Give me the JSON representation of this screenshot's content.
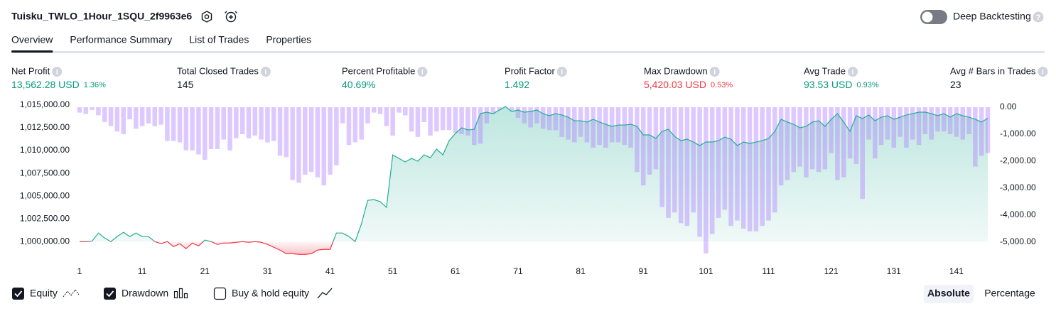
{
  "header": {
    "title": "Tuisku_TWLO_1Hour_1SQU_2f9963e6",
    "deep_backtesting": "Deep Backtesting"
  },
  "tabs": [
    "Overview",
    "Performance Summary",
    "List of Trades",
    "Properties"
  ],
  "active_tab": 0,
  "metrics": [
    {
      "label": "Net Profit",
      "value": "13,562.28 USD",
      "pct": "1.36%",
      "color": "#089981"
    },
    {
      "label": "Total Closed Trades",
      "value": "145",
      "color": "#131722"
    },
    {
      "label": "Percent Profitable",
      "value": "40.69%",
      "color": "#089981"
    },
    {
      "label": "Profit Factor",
      "value": "1.492",
      "color": "#089981"
    },
    {
      "label": "Max Drawdown",
      "value": "5,420.03 USD",
      "pct": "0.53%",
      "color": "#f23645"
    },
    {
      "label": "Avg Trade",
      "value": "93.53 USD",
      "pct": "0.93%",
      "color": "#089981"
    },
    {
      "label": "Avg # Bars in Trades",
      "value": "23",
      "color": "#131722"
    }
  ],
  "buy_hold": "Buy & hold equity",
  "scale_buttons": [
    "Absolute",
    "Percentage"
  ],
  "chart_data": {
    "type": "combo",
    "x": [
      1,
      2,
      3,
      4,
      5,
      6,
      7,
      8,
      9,
      10,
      11,
      12,
      13,
      14,
      15,
      16,
      17,
      18,
      19,
      20,
      21,
      22,
      23,
      24,
      25,
      26,
      27,
      28,
      29,
      30,
      31,
      32,
      33,
      34,
      35,
      36,
      37,
      38,
      39,
      40,
      41,
      42,
      43,
      44,
      45,
      46,
      47,
      48,
      49,
      50,
      51,
      52,
      53,
      54,
      55,
      56,
      57,
      58,
      59,
      60,
      61,
      62,
      63,
      64,
      65,
      66,
      67,
      68,
      69,
      70,
      71,
      72,
      73,
      74,
      75,
      76,
      77,
      78,
      79,
      80,
      81,
      82,
      83,
      84,
      85,
      86,
      87,
      88,
      89,
      90,
      91,
      92,
      93,
      94,
      95,
      96,
      97,
      98,
      99,
      100,
      101,
      102,
      103,
      104,
      105,
      106,
      107,
      108,
      109,
      110,
      111,
      112,
      113,
      114,
      115,
      116,
      117,
      118,
      119,
      120,
      121,
      122,
      123,
      124,
      125,
      126,
      127,
      128,
      129,
      130,
      131,
      132,
      133,
      134,
      135,
      136,
      137,
      138,
      139,
      140,
      141,
      142,
      143,
      144,
      145,
      146
    ],
    "xlim": [
      1,
      146
    ],
    "xticks": [
      1,
      11,
      21,
      31,
      41,
      51,
      61,
      71,
      81,
      91,
      101,
      111,
      121,
      131,
      141
    ],
    "ylim": [
      998300,
      1015000
    ],
    "yticks": [
      {
        "value": 1000000,
        "label": "1,000,000.00"
      },
      {
        "value": 1002500,
        "label": "1,002,500.00"
      },
      {
        "value": 1005000,
        "label": "1,005,000.00"
      },
      {
        "value": 1007500,
        "label": "1,007,500.00"
      },
      {
        "value": 1010000,
        "label": "1,010,000.00"
      },
      {
        "value": 1012500,
        "label": "1,012,500.00"
      },
      {
        "value": 1015000,
        "label": "1,015,000.00"
      }
    ],
    "y2lim": [
      -5553,
      79
    ],
    "y2ticks": [
      {
        "value": 0,
        "label": "0.00"
      },
      {
        "value": -1000,
        "label": "-1,000.00"
      },
      {
        "value": -2000,
        "label": "-2,000.00"
      },
      {
        "value": -3000,
        "label": "-3,000.00"
      },
      {
        "value": -4000,
        "label": "-4,000.00"
      },
      {
        "value": -5000,
        "label": "-5,000.00"
      }
    ],
    "series": [
      {
        "name": "Equity",
        "type": "line",
        "color": "#22ab94",
        "below_color": "#f23645",
        "values": [
          1000000,
          1000000,
          1000050,
          1000940,
          1000390,
          1000000,
          1000550,
          1001020,
          1000550,
          1000940,
          1000550,
          1000550,
          1000000,
          999770,
          1000000,
          999450,
          999770,
          999220,
          999840,
          999530,
          1000160,
          1000000,
          999690,
          999840,
          999840,
          999920,
          1000000,
          999920,
          1000000,
          999920,
          999690,
          999380,
          999060,
          998670,
          998670,
          998590,
          998590,
          998670,
          999060,
          999140,
          999140,
          1000940,
          1000940,
          1000550,
          1000000,
          1001950,
          1004530,
          1004610,
          1004380,
          1003750,
          1009530,
          1009140,
          1008750,
          1009140,
          1008830,
          1009530,
          1009220,
          1010160,
          1009530,
          1011090,
          1011880,
          1012500,
          1012270,
          1012340,
          1014060,
          1014220,
          1014060,
          1014450,
          1014840,
          1014300,
          1014450,
          1014220,
          1014300,
          1014450,
          1014060,
          1013830,
          1014060,
          1013910,
          1013670,
          1013280,
          1013280,
          1013130,
          1013440,
          1013130,
          1012890,
          1012660,
          1012810,
          1012810,
          1012890,
          1012660,
          1011720,
          1011720,
          1011330,
          1012110,
          1012340,
          1011560,
          1011090,
          1011250,
          1010940,
          1010550,
          1010940,
          1010940,
          1011090,
          1011480,
          1011250,
          1010550,
          1010940,
          1010780,
          1010940,
          1011090,
          1011330,
          1012110,
          1013440,
          1013130,
          1012890,
          1012500,
          1012660,
          1013130,
          1013280,
          1012660,
          1013440,
          1014060,
          1013130,
          1012110,
          1013830,
          1013520,
          1013910,
          1013280,
          1013670,
          1013830,
          1013440,
          1013670,
          1013910,
          1014060,
          1014220,
          1014220,
          1014060,
          1013830,
          1014060,
          1013670,
          1014060,
          1013830,
          1013670,
          1013440,
          1013130,
          1013560
        ]
      },
      {
        "name": "Drawdown",
        "type": "bar",
        "axis": "y2",
        "color": "rgba(179,136,255,0.45)",
        "values": [
          -200,
          -250,
          -100,
          -300,
          -550,
          -700,
          -900,
          -1000,
          -450,
          -800,
          -700,
          -600,
          -700,
          -650,
          -1250,
          -1250,
          -1300,
          -1600,
          -1600,
          -1750,
          -1950,
          -1550,
          -1550,
          -1200,
          -1600,
          -1150,
          -1000,
          -1150,
          -1050,
          -1200,
          -1300,
          -1250,
          -1800,
          -1850,
          -2700,
          -2800,
          -2500,
          -2400,
          -2600,
          -2900,
          -2500,
          -2150,
          -600,
          -1400,
          -1300,
          -1200,
          -600,
          -200,
          -250,
          -700,
          -1050,
          -200,
          -300,
          -900,
          -1100,
          -550,
          -1050,
          -900,
          -850,
          -850,
          -950,
          -1000,
          -1050,
          -1400,
          -1350,
          -600,
          -250,
          -100,
          0,
          -150,
          -400,
          -600,
          -750,
          -600,
          -800,
          -850,
          -850,
          -1100,
          -1200,
          -1300,
          -1100,
          -1300,
          -1500,
          -1400,
          -1500,
          -1300,
          -1300,
          -1400,
          -1500,
          -2400,
          -2900,
          -2500,
          -2300,
          -3700,
          -4100,
          -3900,
          -4300,
          -4400,
          -3900,
          -4800,
          -5420,
          -4700,
          -4100,
          -3800,
          -4400,
          -4200,
          -4500,
          -4600,
          -4600,
          -4400,
          -4200,
          -3900,
          -2900,
          -2700,
          -2400,
          -2200,
          -2600,
          -2300,
          -2400,
          -2300,
          -1700,
          -2700,
          -2600,
          -1900,
          -2100,
          -3400,
          -1200,
          -1900,
          -1400,
          -1200,
          -1500,
          -1100,
          -1500,
          -1200,
          -1400,
          -1000,
          -1200,
          -900,
          -900,
          -1000,
          -1100,
          -1200,
          -1000,
          -2200,
          -1800,
          -1700
        ]
      }
    ]
  }
}
